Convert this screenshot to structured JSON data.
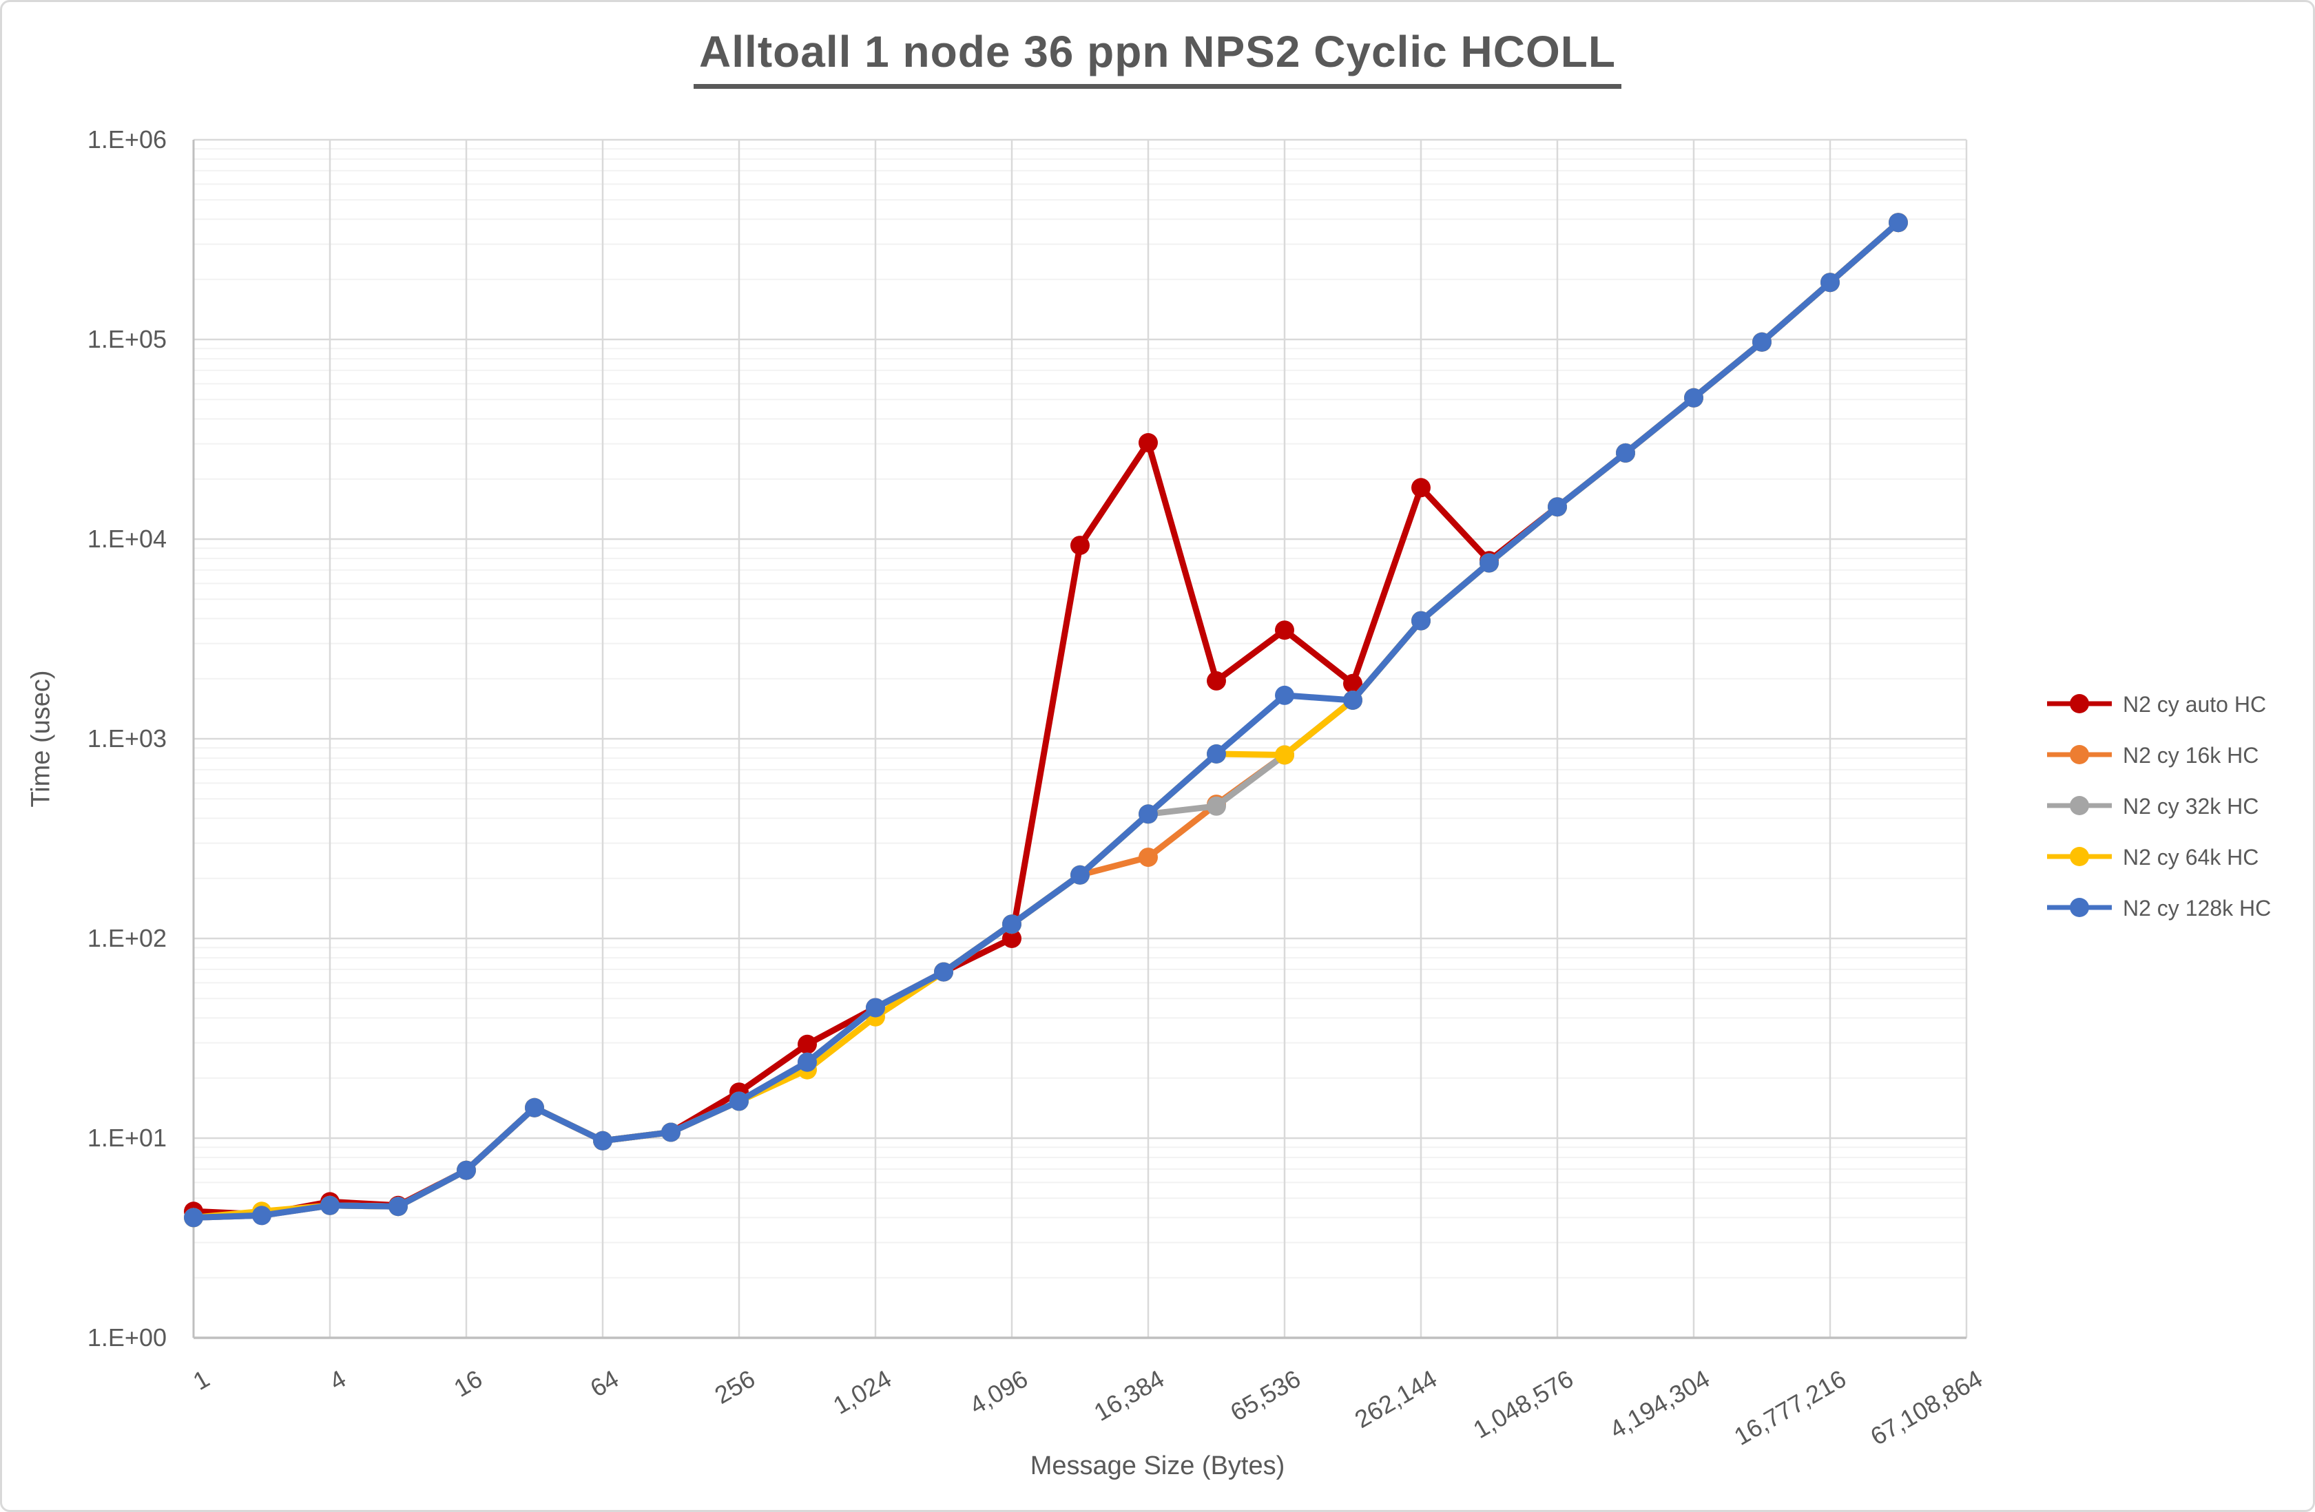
{
  "title": "Alltoall 1 node 36 ppn NPS2 Cyclic HCOLL",
  "chart_data": {
    "type": "line",
    "title": "Alltoall 1 node 36 ppn NPS2 Cyclic HCOLL",
    "xlabel": "Message Size (Bytes)",
    "ylabel": "Time (usec)",
    "x_scale": "log2-categories",
    "y_scale": "log10",
    "ylim": [
      1,
      1000000
    ],
    "y_tick_labels": [
      "1.E+00",
      "1.E+01",
      "1.E+02",
      "1.E+03",
      "1.E+04",
      "1.E+05",
      "1.E+06"
    ],
    "x_axis_max_category": 67108864,
    "x_tick_labels": [
      "1",
      "4",
      "16",
      "64",
      "256",
      "1,024",
      "4,096",
      "16,384",
      "65,536",
      "262,144",
      "1,048,576",
      "4,194,304",
      "16,777,216",
      "67,108,864"
    ],
    "grid": {
      "major": true,
      "minor_log": true
    },
    "legend_position": "right",
    "categories": [
      1,
      2,
      4,
      8,
      16,
      32,
      64,
      128,
      256,
      512,
      1024,
      2048,
      4096,
      8192,
      16384,
      32768,
      65536,
      131072,
      262144,
      524288,
      1048576,
      2097152,
      4194304,
      8388608,
      16777216,
      33554432
    ],
    "series": [
      {
        "name": "N2 cy auto HC",
        "color": "#C00000",
        "values": [
          4.3,
          4.15,
          4.8,
          4.6,
          6.9,
          14.2,
          9.7,
          10.7,
          17,
          29.5,
          45,
          68,
          100,
          9300,
          30400,
          1950,
          3500,
          1890,
          18100,
          7800,
          14500,
          27000,
          51000,
          97000,
          193000,
          385000
        ]
      },
      {
        "name": "N2 cy 16k HC",
        "color": "#ED7D31",
        "values": [
          4.0,
          4.1,
          4.6,
          4.55,
          6.9,
          14.2,
          9.7,
          10.7,
          15.3,
          24,
          45,
          68,
          118,
          208,
          255,
          470,
          830,
          1560,
          3900,
          7600,
          14500,
          27000,
          51000,
          97000,
          193000,
          385000
        ]
      },
      {
        "name": "N2 cy 32k HC",
        "color": "#A5A5A5",
        "values": [
          4.0,
          4.1,
          4.6,
          4.55,
          6.9,
          14.2,
          9.7,
          10.7,
          15.3,
          24,
          45,
          68,
          118,
          208,
          420,
          460,
          830,
          1560,
          3900,
          7600,
          14500,
          27000,
          51000,
          97000,
          193000,
          385000
        ]
      },
      {
        "name": "N2 cy 64k HC",
        "color": "#FFC000",
        "values": [
          4.0,
          4.3,
          4.6,
          4.55,
          6.9,
          14.2,
          9.7,
          10.7,
          15.3,
          22,
          40.5,
          68,
          118,
          208,
          420,
          840,
          830,
          1560,
          3900,
          7600,
          14500,
          27000,
          51000,
          97000,
          193000,
          385000
        ]
      },
      {
        "name": "N2 cy 128k HC",
        "color": "#4472C4",
        "values": [
          4.0,
          4.1,
          4.6,
          4.55,
          6.9,
          14.2,
          9.7,
          10.7,
          15.3,
          24,
          45,
          68,
          118,
          208,
          420,
          840,
          1650,
          1560,
          3900,
          7600,
          14500,
          27000,
          51000,
          97000,
          193000,
          385000
        ]
      }
    ],
    "style": {
      "major_grid_color": "#D9D9D9",
      "minor_grid_color": "#F2F2F2",
      "axis_line_color": "#BFBFBF",
      "text_color": "#595959",
      "background": "#FFFFFF"
    }
  }
}
